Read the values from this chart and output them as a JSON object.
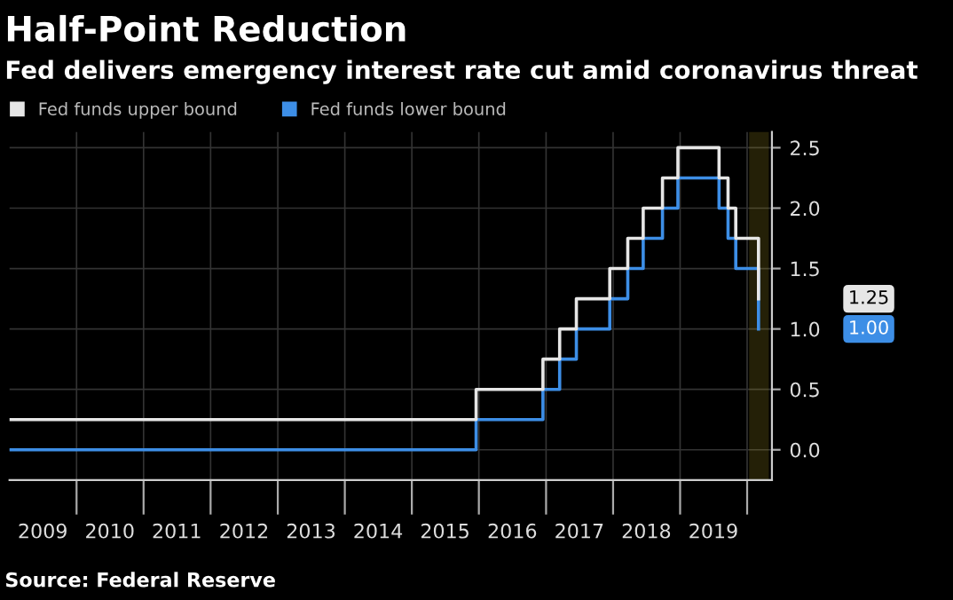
{
  "chart_data": {
    "type": "step",
    "title": "Half-Point Reduction",
    "subtitle": "Fed delivers emergency interest rate cut amid coronavirus threat",
    "x": [
      "2009-01-01",
      "2015-12-17",
      "2016-12-15",
      "2017-03-16",
      "2017-06-15",
      "2017-12-14",
      "2018-03-22",
      "2018-06-14",
      "2018-09-27",
      "2018-12-20",
      "2019-08-01",
      "2019-09-19",
      "2019-10-31",
      "2020-03-03"
    ],
    "series": [
      {
        "name": "Fed funds upper bound",
        "color": "#e6e6e6",
        "values": [
          0.25,
          0.5,
          0.75,
          1.0,
          1.25,
          1.5,
          1.75,
          2.0,
          2.25,
          2.5,
          2.25,
          2.0,
          1.75,
          1.25
        ]
      },
      {
        "name": "Fed funds lower bound",
        "color": "#3d8ee6",
        "values": [
          0,
          0.25,
          0.5,
          0.75,
          1.0,
          1.25,
          1.5,
          1.75,
          2.0,
          2.25,
          2.0,
          1.75,
          1.5,
          1.0
        ]
      }
    ],
    "xlim": [
      "2009-01-01",
      "2020-05-15"
    ],
    "xticks": [
      {
        "value": "2009-07-01",
        "label": "2009"
      },
      {
        "value": "2010-01-01",
        "label": null
      },
      {
        "value": "2010-07-01",
        "label": "2010"
      },
      {
        "value": "2011-01-01",
        "label": null
      },
      {
        "value": "2011-07-01",
        "label": "2011"
      },
      {
        "value": "2012-01-01",
        "label": null
      },
      {
        "value": "2012-07-01",
        "label": "2012"
      },
      {
        "value": "2013-01-01",
        "label": null
      },
      {
        "value": "2013-07-01",
        "label": "2013"
      },
      {
        "value": "2014-01-01",
        "label": null
      },
      {
        "value": "2014-07-01",
        "label": "2014"
      },
      {
        "value": "2015-01-01",
        "label": null
      },
      {
        "value": "2015-07-01",
        "label": "2015"
      },
      {
        "value": "2016-01-01",
        "label": null
      },
      {
        "value": "2016-07-01",
        "label": "2016"
      },
      {
        "value": "2017-01-01",
        "label": null
      },
      {
        "value": "2017-07-01",
        "label": "2017"
      },
      {
        "value": "2018-01-01",
        "label": null
      },
      {
        "value": "2018-07-01",
        "label": "2018"
      },
      {
        "value": "2019-01-01",
        "label": null
      },
      {
        "value": "2019-07-01",
        "label": "2019"
      },
      {
        "value": "2020-01-01",
        "label": null
      }
    ],
    "ylim": [
      -0.25,
      2.63
    ],
    "yticks": [
      {
        "value": 0,
        "label": "0.0"
      },
      {
        "value": 0.5,
        "label": "0.5"
      },
      {
        "value": 1.0,
        "label": "1.0"
      },
      {
        "value": 1.5,
        "label": "1.5"
      },
      {
        "value": 2.0,
        "label": "2.0"
      },
      {
        "value": 2.5,
        "label": "2.5"
      }
    ],
    "bands": [
      {
        "axis": "x",
        "from": "2020-01-20",
        "to": "2020-04-20",
        "color": "#c9b32a"
      }
    ],
    "annotations": [
      "1.25",
      "1.00",
      "Source: Federal Reserve"
    ],
    "grid": true,
    "legend": "top left",
    "line_style": "solid",
    "marker": "none"
  }
}
